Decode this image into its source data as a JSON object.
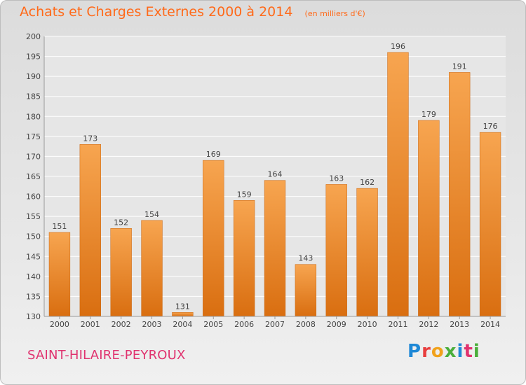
{
  "header": {
    "title": "Achats et Charges Externes 2000 à 2014",
    "subtitle": "(en milliers d'€)"
  },
  "footer": {
    "town": "SAINT-HILAIRE-PEYROUX",
    "logo": "Proxiti"
  },
  "colors": {
    "bar_light": "#f7a550",
    "bar_dark": "#d96e10",
    "title": "#ff6a1a",
    "town": "#e0336f"
  },
  "chart_data": {
    "type": "bar",
    "title": "Achats et Charges Externes 2000 à 2014",
    "subtitle": "(en milliers d'€)",
    "categories": [
      "2000",
      "2001",
      "2002",
      "2003",
      "2004",
      "2005",
      "2006",
      "2007",
      "2008",
      "2009",
      "2010",
      "2011",
      "2012",
      "2013",
      "2014"
    ],
    "values": [
      151,
      173,
      152,
      154,
      131,
      169,
      159,
      164,
      143,
      163,
      162,
      196,
      179,
      191,
      176
    ],
    "ylim": [
      130,
      200
    ],
    "yticks": [
      130,
      135,
      140,
      145,
      150,
      155,
      160,
      165,
      170,
      175,
      180,
      185,
      190,
      195,
      200
    ],
    "grid": true,
    "legend": "none",
    "data_labels": true
  }
}
